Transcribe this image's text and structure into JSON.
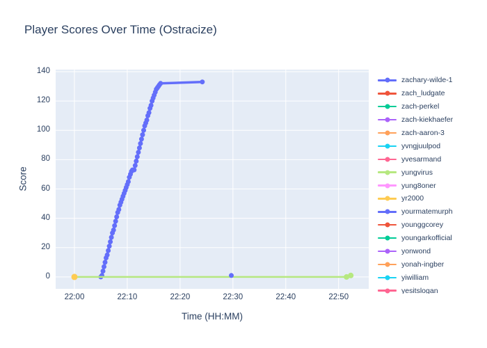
{
  "title": "Player Scores Over Time (Ostracize)",
  "colors": {
    "text": "#2a3f5f",
    "paper_bg": "#ffffff",
    "plot_bg": "#e5ecf6",
    "grid": "#ffffff"
  },
  "axes": {
    "x_title": "Time (HH:MM)",
    "y_title": "Score"
  },
  "chart_data": {
    "type": "line",
    "title": "Player Scores Over Time (Ostracize)",
    "xlabel": "Time (HH:MM)",
    "ylabel": "Score",
    "x_base": "22:00",
    "x_unit": "decimal minutes after 22:00",
    "xlim": [
      -3.55,
      55.7
    ],
    "ylim": [
      -8.1,
      141.4
    ],
    "xticks": [
      {
        "m": 0,
        "label": "22:00"
      },
      {
        "m": 10,
        "label": "22:10"
      },
      {
        "m": 20,
        "label": "22:20"
      },
      {
        "m": 30,
        "label": "22:30"
      },
      {
        "m": 40,
        "label": "22:40"
      },
      {
        "m": 50,
        "label": "22:50"
      }
    ],
    "yticks": [
      0,
      20,
      40,
      60,
      80,
      100,
      120,
      140
    ],
    "grid": true,
    "legend_position": "right",
    "series": [
      {
        "name": "zachary-wilde-1",
        "color": "#636efa",
        "mode": "lines+markers",
        "line_width": 3.5,
        "marker_size": 3.5,
        "points": [
          [
            5.0,
            0
          ],
          [
            5.2,
            1
          ],
          [
            5.4,
            4
          ],
          [
            5.6,
            7
          ],
          [
            5.8,
            10
          ],
          [
            6.0,
            13
          ],
          [
            6.2,
            15
          ],
          [
            6.4,
            18
          ],
          [
            6.6,
            21
          ],
          [
            6.8,
            24
          ],
          [
            7.0,
            27
          ],
          [
            7.2,
            30
          ],
          [
            7.4,
            32
          ],
          [
            7.6,
            35
          ],
          [
            7.8,
            38
          ],
          [
            8.0,
            41
          ],
          [
            8.2,
            44
          ],
          [
            8.4,
            46
          ],
          [
            8.6,
            49
          ],
          [
            8.8,
            51
          ],
          [
            9.0,
            53
          ],
          [
            9.2,
            55
          ],
          [
            9.4,
            57
          ],
          [
            9.6,
            59
          ],
          [
            9.8,
            61
          ],
          [
            10.0,
            63
          ],
          [
            10.2,
            65
          ],
          [
            10.4,
            68
          ],
          [
            10.6,
            70
          ],
          [
            10.8,
            72
          ],
          [
            11.0,
            73
          ],
          [
            11.3,
            73
          ],
          [
            11.5,
            76
          ],
          [
            11.7,
            79
          ],
          [
            11.9,
            82
          ],
          [
            12.1,
            85
          ],
          [
            12.3,
            88
          ],
          [
            12.5,
            91
          ],
          [
            12.7,
            94
          ],
          [
            12.9,
            97
          ],
          [
            13.1,
            100
          ],
          [
            13.3,
            103
          ],
          [
            13.5,
            105
          ],
          [
            13.7,
            107
          ],
          [
            13.9,
            110
          ],
          [
            14.1,
            112
          ],
          [
            14.3,
            115
          ],
          [
            14.5,
            117
          ],
          [
            14.7,
            120
          ],
          [
            14.9,
            122
          ],
          [
            15.1,
            124
          ],
          [
            15.3,
            126
          ],
          [
            15.5,
            128
          ],
          [
            15.7,
            129
          ],
          [
            15.9,
            130
          ],
          [
            16.1,
            131
          ],
          [
            16.3,
            132
          ],
          [
            24.2,
            133
          ]
        ]
      },
      {
        "name": "zach_ludgate",
        "color": "#ef553b",
        "mode": "lines+markers",
        "points": []
      },
      {
        "name": "zach-perkel",
        "color": "#00cc96",
        "mode": "lines+markers",
        "points": []
      },
      {
        "name": "zach-kiekhaefer",
        "color": "#ab63fa",
        "mode": "lines+markers",
        "points": []
      },
      {
        "name": "zach-aaron-3",
        "color": "#ffa15a",
        "mode": "lines+markers",
        "points": []
      },
      {
        "name": "yvngjuulpod",
        "color": "#19d3f3",
        "mode": "lines+markers",
        "points": []
      },
      {
        "name": "yvesarmand",
        "color": "#ff6692",
        "mode": "lines+markers",
        "points": []
      },
      {
        "name": "yungvirus",
        "color": "#b6e880",
        "mode": "lines+markers",
        "line_width": 2.5,
        "marker_size": 4,
        "points": [
          [
            0,
            0
          ],
          [
            51.5,
            0
          ],
          [
            52.3,
            1
          ]
        ]
      },
      {
        "name": "yung8oner",
        "color": "#ff97ff",
        "mode": "lines+markers",
        "points": []
      },
      {
        "name": "yr2000",
        "color": "#fecb52",
        "mode": "markers",
        "marker_size": 4.5,
        "points": [
          [
            0,
            0
          ]
        ]
      },
      {
        "name": "yourmatemurph",
        "color": "#636efa",
        "mode": "markers",
        "marker_size": 3.5,
        "points": [
          [
            29.7,
            1
          ]
        ]
      },
      {
        "name": "younggcorey",
        "color": "#ef553b",
        "mode": "lines+markers",
        "points": []
      },
      {
        "name": "youngarkofficial",
        "color": "#00cc96",
        "mode": "lines+markers",
        "points": []
      },
      {
        "name": "yonwond",
        "color": "#ab63fa",
        "mode": "lines+markers",
        "points": []
      },
      {
        "name": "yonah-ingber",
        "color": "#ffa15a",
        "mode": "lines+markers",
        "points": []
      },
      {
        "name": "yiwilliam",
        "color": "#19d3f3",
        "mode": "lines+markers",
        "points": []
      },
      {
        "name": "yesitslogan",
        "color": "#ff6692",
        "mode": "lines+markers",
        "points": []
      }
    ]
  }
}
